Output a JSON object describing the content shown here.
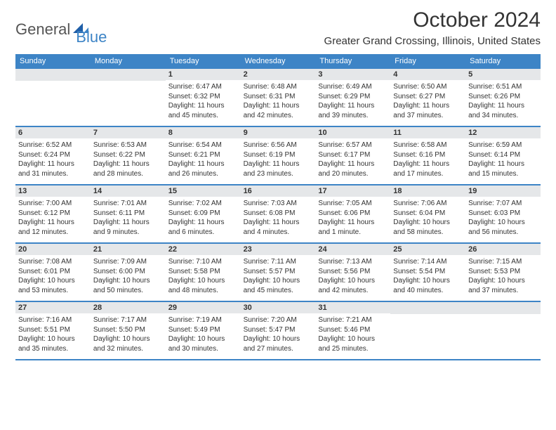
{
  "logo": {
    "part1": "General",
    "part2": "Blue"
  },
  "title": "October 2024",
  "location": "Greater Grand Crossing, Illinois, United States",
  "colors": {
    "header_bg": "#3d84c6",
    "header_text": "#ffffff",
    "day_stripe": "#e5e7e9",
    "rule": "#3d84c6",
    "body_text": "#333333",
    "logo_gray": "#555555",
    "logo_blue": "#3d84c6",
    "page_bg": "#ffffff"
  },
  "days_of_week": [
    "Sunday",
    "Monday",
    "Tuesday",
    "Wednesday",
    "Thursday",
    "Friday",
    "Saturday"
  ],
  "weeks": [
    [
      {
        "empty": true
      },
      {
        "empty": true
      },
      {
        "n": "1",
        "sunrise": "Sunrise: 6:47 AM",
        "sunset": "Sunset: 6:32 PM",
        "day1": "Daylight: 11 hours",
        "day2": "and 45 minutes."
      },
      {
        "n": "2",
        "sunrise": "Sunrise: 6:48 AM",
        "sunset": "Sunset: 6:31 PM",
        "day1": "Daylight: 11 hours",
        "day2": "and 42 minutes."
      },
      {
        "n": "3",
        "sunrise": "Sunrise: 6:49 AM",
        "sunset": "Sunset: 6:29 PM",
        "day1": "Daylight: 11 hours",
        "day2": "and 39 minutes."
      },
      {
        "n": "4",
        "sunrise": "Sunrise: 6:50 AM",
        "sunset": "Sunset: 6:27 PM",
        "day1": "Daylight: 11 hours",
        "day2": "and 37 minutes."
      },
      {
        "n": "5",
        "sunrise": "Sunrise: 6:51 AM",
        "sunset": "Sunset: 6:26 PM",
        "day1": "Daylight: 11 hours",
        "day2": "and 34 minutes."
      }
    ],
    [
      {
        "n": "6",
        "sunrise": "Sunrise: 6:52 AM",
        "sunset": "Sunset: 6:24 PM",
        "day1": "Daylight: 11 hours",
        "day2": "and 31 minutes."
      },
      {
        "n": "7",
        "sunrise": "Sunrise: 6:53 AM",
        "sunset": "Sunset: 6:22 PM",
        "day1": "Daylight: 11 hours",
        "day2": "and 28 minutes."
      },
      {
        "n": "8",
        "sunrise": "Sunrise: 6:54 AM",
        "sunset": "Sunset: 6:21 PM",
        "day1": "Daylight: 11 hours",
        "day2": "and 26 minutes."
      },
      {
        "n": "9",
        "sunrise": "Sunrise: 6:56 AM",
        "sunset": "Sunset: 6:19 PM",
        "day1": "Daylight: 11 hours",
        "day2": "and 23 minutes."
      },
      {
        "n": "10",
        "sunrise": "Sunrise: 6:57 AM",
        "sunset": "Sunset: 6:17 PM",
        "day1": "Daylight: 11 hours",
        "day2": "and 20 minutes."
      },
      {
        "n": "11",
        "sunrise": "Sunrise: 6:58 AM",
        "sunset": "Sunset: 6:16 PM",
        "day1": "Daylight: 11 hours",
        "day2": "and 17 minutes."
      },
      {
        "n": "12",
        "sunrise": "Sunrise: 6:59 AM",
        "sunset": "Sunset: 6:14 PM",
        "day1": "Daylight: 11 hours",
        "day2": "and 15 minutes."
      }
    ],
    [
      {
        "n": "13",
        "sunrise": "Sunrise: 7:00 AM",
        "sunset": "Sunset: 6:12 PM",
        "day1": "Daylight: 11 hours",
        "day2": "and 12 minutes."
      },
      {
        "n": "14",
        "sunrise": "Sunrise: 7:01 AM",
        "sunset": "Sunset: 6:11 PM",
        "day1": "Daylight: 11 hours",
        "day2": "and 9 minutes."
      },
      {
        "n": "15",
        "sunrise": "Sunrise: 7:02 AM",
        "sunset": "Sunset: 6:09 PM",
        "day1": "Daylight: 11 hours",
        "day2": "and 6 minutes."
      },
      {
        "n": "16",
        "sunrise": "Sunrise: 7:03 AM",
        "sunset": "Sunset: 6:08 PM",
        "day1": "Daylight: 11 hours",
        "day2": "and 4 minutes."
      },
      {
        "n": "17",
        "sunrise": "Sunrise: 7:05 AM",
        "sunset": "Sunset: 6:06 PM",
        "day1": "Daylight: 11 hours",
        "day2": "and 1 minute."
      },
      {
        "n": "18",
        "sunrise": "Sunrise: 7:06 AM",
        "sunset": "Sunset: 6:04 PM",
        "day1": "Daylight: 10 hours",
        "day2": "and 58 minutes."
      },
      {
        "n": "19",
        "sunrise": "Sunrise: 7:07 AM",
        "sunset": "Sunset: 6:03 PM",
        "day1": "Daylight: 10 hours",
        "day2": "and 56 minutes."
      }
    ],
    [
      {
        "n": "20",
        "sunrise": "Sunrise: 7:08 AM",
        "sunset": "Sunset: 6:01 PM",
        "day1": "Daylight: 10 hours",
        "day2": "and 53 minutes."
      },
      {
        "n": "21",
        "sunrise": "Sunrise: 7:09 AM",
        "sunset": "Sunset: 6:00 PM",
        "day1": "Daylight: 10 hours",
        "day2": "and 50 minutes."
      },
      {
        "n": "22",
        "sunrise": "Sunrise: 7:10 AM",
        "sunset": "Sunset: 5:58 PM",
        "day1": "Daylight: 10 hours",
        "day2": "and 48 minutes."
      },
      {
        "n": "23",
        "sunrise": "Sunrise: 7:11 AM",
        "sunset": "Sunset: 5:57 PM",
        "day1": "Daylight: 10 hours",
        "day2": "and 45 minutes."
      },
      {
        "n": "24",
        "sunrise": "Sunrise: 7:13 AM",
        "sunset": "Sunset: 5:56 PM",
        "day1": "Daylight: 10 hours",
        "day2": "and 42 minutes."
      },
      {
        "n": "25",
        "sunrise": "Sunrise: 7:14 AM",
        "sunset": "Sunset: 5:54 PM",
        "day1": "Daylight: 10 hours",
        "day2": "and 40 minutes."
      },
      {
        "n": "26",
        "sunrise": "Sunrise: 7:15 AM",
        "sunset": "Sunset: 5:53 PM",
        "day1": "Daylight: 10 hours",
        "day2": "and 37 minutes."
      }
    ],
    [
      {
        "n": "27",
        "sunrise": "Sunrise: 7:16 AM",
        "sunset": "Sunset: 5:51 PM",
        "day1": "Daylight: 10 hours",
        "day2": "and 35 minutes."
      },
      {
        "n": "28",
        "sunrise": "Sunrise: 7:17 AM",
        "sunset": "Sunset: 5:50 PM",
        "day1": "Daylight: 10 hours",
        "day2": "and 32 minutes."
      },
      {
        "n": "29",
        "sunrise": "Sunrise: 7:19 AM",
        "sunset": "Sunset: 5:49 PM",
        "day1": "Daylight: 10 hours",
        "day2": "and 30 minutes."
      },
      {
        "n": "30",
        "sunrise": "Sunrise: 7:20 AM",
        "sunset": "Sunset: 5:47 PM",
        "day1": "Daylight: 10 hours",
        "day2": "and 27 minutes."
      },
      {
        "n": "31",
        "sunrise": "Sunrise: 7:21 AM",
        "sunset": "Sunset: 5:46 PM",
        "day1": "Daylight: 10 hours",
        "day2": "and 25 minutes."
      },
      {
        "empty": true
      },
      {
        "empty": true
      }
    ]
  ]
}
